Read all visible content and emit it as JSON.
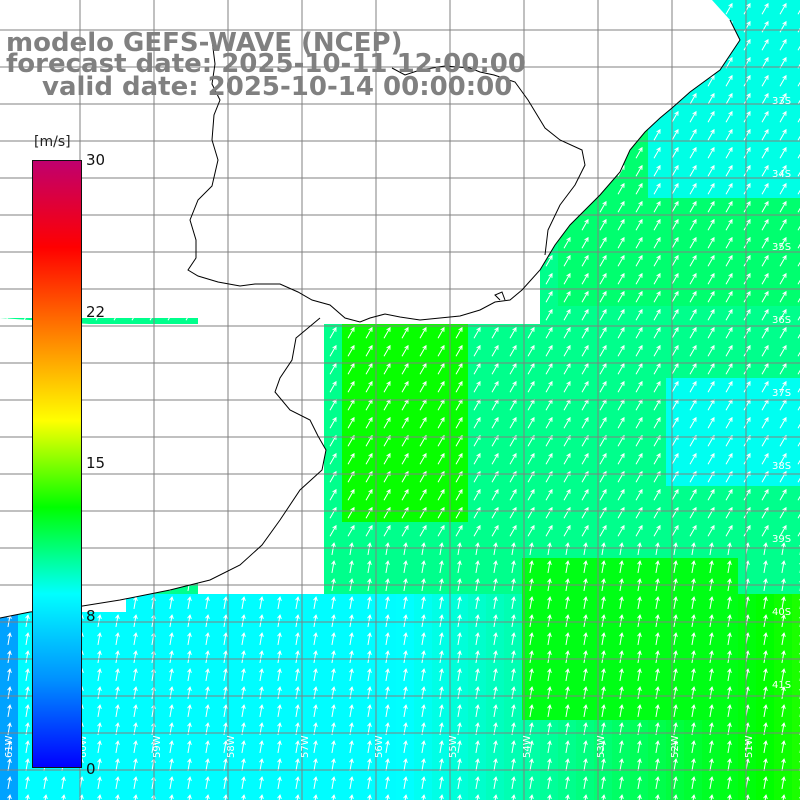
{
  "title": {
    "line1": "modelo GEFS-WAVE (NCEP)",
    "line2": "forecast date: 2025-10-11 12:00:00",
    "line3": "valid date: 2025-10-14 00:00:00"
  },
  "colorbar": {
    "units": "[m/s]",
    "ticks": [
      "30",
      "22",
      "15",
      "8",
      "0"
    ],
    "tick_values": [
      30,
      22,
      15,
      8,
      0
    ],
    "range": [
      0,
      30
    ],
    "colors": [
      "#0000ff",
      "#0090ff",
      "#00ffff",
      "#00ff00",
      "#ffff00",
      "#ff8000",
      "#ff0000",
      "#c0006e"
    ]
  },
  "map": {
    "type": "wind speed field with wind direction arrows",
    "lat_labels": [
      "33S",
      "34S",
      "35S",
      "36S",
      "37S",
      "38S",
      "39S",
      "40S",
      "41S"
    ],
    "lon_labels": [
      "61W",
      "60W",
      "59W",
      "58W",
      "57W",
      "56W",
      "55W",
      "54W",
      "53W",
      "52W",
      "51W"
    ],
    "coastline_color": "#000000",
    "gridline_color": "#808080",
    "arrow_color": "#ffffff"
  }
}
